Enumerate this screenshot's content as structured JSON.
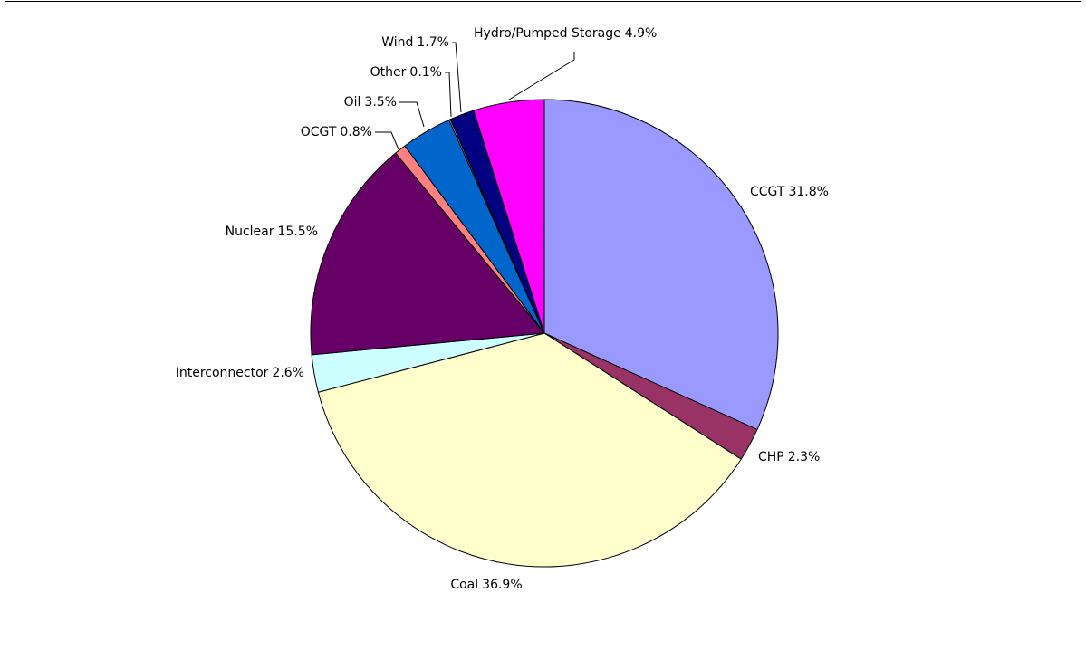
{
  "chart_data": {
    "type": "pie",
    "categories": [
      "CCGT",
      "CHP",
      "Coal",
      "Interconnector",
      "Nuclear",
      "OCGT",
      "Oil",
      "Other",
      "Wind",
      "Hydro/Pumped Storage"
    ],
    "values": [
      31.8,
      2.3,
      36.9,
      2.6,
      15.5,
      0.8,
      3.5,
      0.1,
      1.7,
      4.9
    ],
    "value_labels": [
      "31.8%",
      "2.3%",
      "36.9%",
      "2.6%",
      "15.5%",
      "0.8%",
      "3.5%",
      "0.1%",
      "1.7%",
      "4.9%"
    ],
    "colors": [
      "#9999ff",
      "#993366",
      "#ffffcc",
      "#ccffff",
      "#660066",
      "#ff8080",
      "#0066cc",
      "#ccccff",
      "#000080",
      "#ff00ff"
    ]
  }
}
